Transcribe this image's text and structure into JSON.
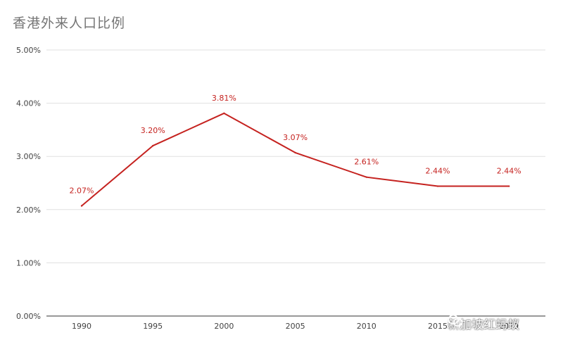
{
  "chart_data": {
    "type": "line",
    "title": "香港外来人口比例",
    "xlabel": "",
    "ylabel": "",
    "categories": [
      "1990",
      "1995",
      "2000",
      "2005",
      "2010",
      "2015",
      "2019"
    ],
    "series": [
      {
        "values": [
          2.07,
          3.2,
          3.81,
          3.07,
          2.61,
          2.44,
          2.44
        ],
        "labels": [
          "2.07%",
          "3.20%",
          "3.81%",
          "3.07%",
          "2.61%",
          "2.44%",
          "2.44%"
        ],
        "color": "#c5221f"
      }
    ],
    "ylim": [
      0,
      5
    ],
    "yticks": [
      "0.00%",
      "1.00%",
      "2.00%",
      "3.00%",
      "4.00%",
      "5.00%"
    ],
    "grid": true,
    "legend": "none",
    "text_color": "#424242",
    "grid_color": "#e0e0e0"
  },
  "watermark": {
    "text": "新加坡红蚂蚁",
    "icon": "wechat-icon"
  }
}
